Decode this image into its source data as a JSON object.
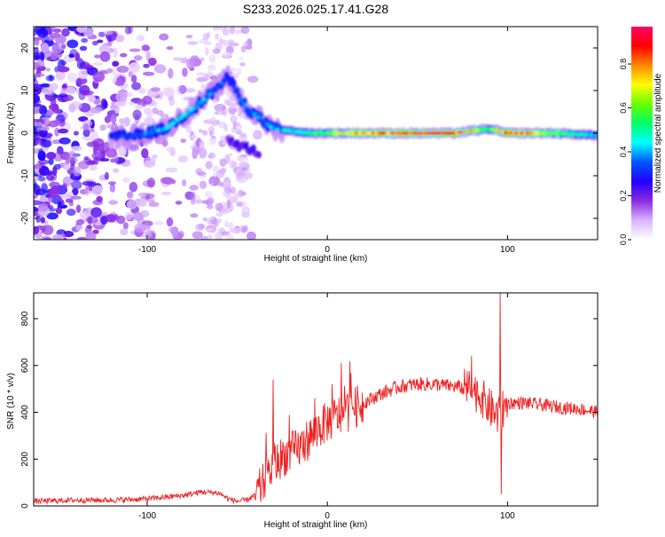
{
  "title": "S233.2026.025.17.41.G28",
  "chart_data": [
    {
      "type": "heatmap",
      "xlabel": "Height of straight line (km)",
      "ylabel": "Frequency (Hz)",
      "xlim": [
        -163,
        150
      ],
      "ylim": [
        -25,
        25
      ],
      "xticks": [
        -100,
        0,
        100
      ],
      "yticks": [
        -20,
        -10,
        0,
        10,
        20
      ],
      "xtick_labels": [
        "-100",
        "0",
        "100"
      ],
      "ytick_labels": [
        "-20",
        "-10",
        "0",
        "10",
        "20"
      ],
      "colorbar": {
        "label": "Normalized spectral amplitude",
        "range": [
          0,
          0.97
        ],
        "ticks": [
          0.0,
          0.2,
          0.4,
          0.6,
          0.8
        ],
        "tick_labels": [
          "0.0",
          "0.2",
          "0.4",
          "0.6",
          "0.8"
        ],
        "colormap": [
          "#ffffff",
          "#d9b3ff",
          "#8a2be2",
          "#2200ff",
          "#0055ff",
          "#00ffff",
          "#00ff66",
          "#66ff00",
          "#ffff00",
          "#ff8800",
          "#ff0000",
          "#ff0066"
        ]
      },
      "ridge_track": [
        {
          "x": -120,
          "y": -1,
          "amp": 0.35
        },
        {
          "x": -105,
          "y": -0.5,
          "amp": 0.4
        },
        {
          "x": -90,
          "y": 1,
          "amp": 0.45
        },
        {
          "x": -80,
          "y": 4,
          "amp": 0.5
        },
        {
          "x": -68,
          "y": 8,
          "amp": 0.45
        },
        {
          "x": -55,
          "y": 13,
          "amp": 0.35
        },
        {
          "x": -45,
          "y": 6,
          "amp": 0.4
        },
        {
          "x": -30,
          "y": 1,
          "amp": 0.45
        },
        {
          "x": -10,
          "y": 0,
          "amp": 0.55
        },
        {
          "x": 10,
          "y": 0,
          "amp": 0.8
        },
        {
          "x": 40,
          "y": 0,
          "amp": 0.95
        },
        {
          "x": 70,
          "y": 0,
          "amp": 0.95
        },
        {
          "x": 90,
          "y": 1,
          "amp": 0.6
        },
        {
          "x": 100,
          "y": 0,
          "amp": 0.95
        },
        {
          "x": 125,
          "y": 0,
          "amp": 0.7
        },
        {
          "x": 150,
          "y": -0.5,
          "amp": 0.45
        }
      ]
    },
    {
      "type": "line",
      "xlabel": "Height of straight line (km)",
      "ylabel": "SNR (10 * v/v)",
      "xlim": [
        -163,
        150
      ],
      "ylim": [
        0,
        910
      ],
      "xticks": [
        -100,
        0,
        100
      ],
      "yticks": [
        0,
        200,
        400,
        600,
        800
      ],
      "xtick_labels": [
        "-100",
        "0",
        "100"
      ],
      "ytick_labels": [
        "0",
        "200",
        "400",
        "600",
        "800"
      ],
      "line_color": "#ee2222",
      "series": [
        {
          "name": "SNR",
          "x": [
            -163,
            -140,
            -120,
            -100,
            -80,
            -70,
            -60,
            -55,
            -50,
            -45,
            -40,
            -35,
            -30,
            -25,
            -20,
            -15,
            -10,
            -5,
            0,
            5,
            10,
            15,
            20,
            25,
            30,
            40,
            50,
            60,
            70,
            80,
            85,
            90,
            95,
            100,
            110,
            120,
            130,
            140,
            150
          ],
          "y": [
            20,
            25,
            25,
            30,
            45,
            60,
            55,
            30,
            20,
            25,
            45,
            100,
            170,
            210,
            230,
            250,
            290,
            330,
            360,
            380,
            400,
            420,
            440,
            460,
            480,
            510,
            520,
            520,
            510,
            500,
            470,
            420,
            380,
            440,
            440,
            430,
            420,
            415,
            400
          ]
        }
      ],
      "spikes": [
        {
          "x": -30,
          "y": 540
        },
        {
          "x": 80,
          "y": 640
        },
        {
          "x": 96,
          "y": 910
        },
        {
          "x": 96.5,
          "y": 50
        }
      ]
    }
  ]
}
